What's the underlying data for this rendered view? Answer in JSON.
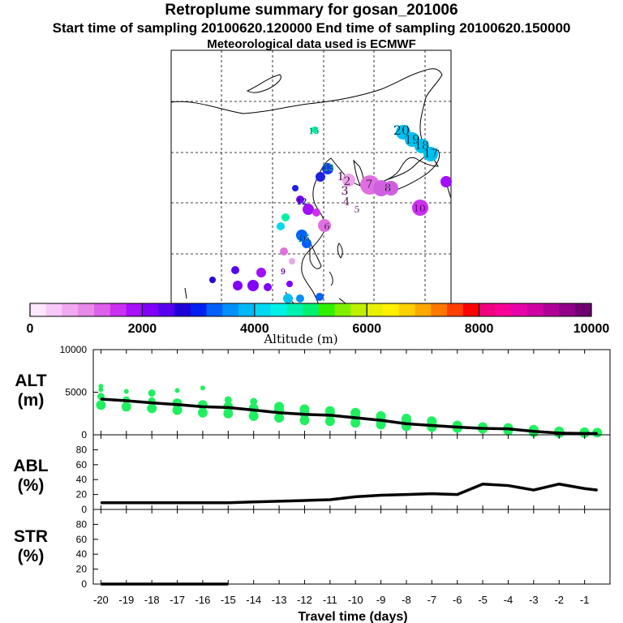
{
  "header": {
    "title": "Retroplume summary for gosan_201006",
    "line2": "Start time of sampling 20100620.120000     End time of sampling 20100620.150000",
    "line3": "Meteorological data used is ECMWF"
  },
  "colorbar": {
    "label": "Altitude (m)",
    "ticks": [
      "0",
      "2000",
      "4000",
      "6000",
      "8000",
      "10000"
    ],
    "min": 0,
    "max": 10000,
    "colors": [
      "#ffe8ff",
      "#f8c8f8",
      "#f0a8f0",
      "#e888e8",
      "#dc60e8",
      "#cc30f0",
      "#a810f8",
      "#8000f8",
      "#5800f0",
      "#2000d8",
      "#0020f0",
      "#0060f8",
      "#0090f8",
      "#00b8f8",
      "#00d8f0",
      "#00f0e8",
      "#00f0b0",
      "#00f070",
      "#30f000",
      "#80f000",
      "#c0f000",
      "#e8f000",
      "#fff000",
      "#ffd000",
      "#ffa800",
      "#ff7800",
      "#ff4000",
      "#ff0000",
      "#f00080",
      "#f80098",
      "#e800a8",
      "#d000a0",
      "#b00098",
      "#900088",
      "#700070"
    ]
  },
  "map": {
    "labels": [
      {
        "t": "20",
        "c": "#00c0f0"
      },
      {
        "t": "19",
        "c": "#00c0f0"
      },
      {
        "t": "18",
        "c": "#00c0f0"
      },
      {
        "t": "17",
        "c": "#00c0f0"
      },
      {
        "t": "1",
        "c": "#e070e0"
      },
      {
        "t": "2",
        "c": "#e070e0"
      },
      {
        "t": "3",
        "c": "#e070e0"
      },
      {
        "t": "4",
        "c": "#e8a8e8"
      },
      {
        "t": "5",
        "c": "#e8a8e8"
      },
      {
        "t": "6",
        "c": "#d060e0"
      },
      {
        "t": "7",
        "c": "#d060e0"
      },
      {
        "t": "8",
        "c": "#d060e0"
      },
      {
        "t": "10",
        "c": "#cc30f0"
      },
      {
        "t": "12",
        "c": "#2020e0"
      },
      {
        "t": "13",
        "c": "#00f0a0"
      },
      {
        "t": "15",
        "c": "#00f0a0"
      },
      {
        "t": "16",
        "c": "#00c0f0"
      },
      {
        "t": "9",
        "c": "#a010f8"
      }
    ]
  },
  "chart_data": [
    {
      "type": "line",
      "panel": "ALT",
      "ylabel": "ALT\n(m)",
      "ylim": [
        0,
        10000
      ],
      "yticks": [
        0,
        5000,
        10000
      ],
      "xlim": [
        -20.3,
        0
      ],
      "x": [
        -20,
        -19,
        -18,
        -17,
        -16,
        -15,
        -14,
        -13,
        -12,
        -11,
        -10,
        -9,
        -8,
        -7,
        -6,
        -5,
        -4,
        -3,
        -2,
        -1,
        -0.5
      ],
      "values": [
        4200,
        4000,
        3750,
        3550,
        3300,
        3200,
        2900,
        2600,
        2400,
        2300,
        2000,
        1700,
        1300,
        1100,
        900,
        750,
        700,
        400,
        200,
        150,
        150
      ],
      "scatter": [
        {
          "x": -20,
          "y": 3500
        },
        {
          "x": -20,
          "y": 4500
        },
        {
          "x": -20,
          "y": 5300
        },
        {
          "x": -20,
          "y": 5700
        },
        {
          "x": -19,
          "y": 3300
        },
        {
          "x": -19,
          "y": 4100
        },
        {
          "x": -19,
          "y": 5100
        },
        {
          "x": -18,
          "y": 3100
        },
        {
          "x": -18,
          "y": 4000
        },
        {
          "x": -18,
          "y": 4900
        },
        {
          "x": -17,
          "y": 2900
        },
        {
          "x": -17,
          "y": 3700
        },
        {
          "x": -17,
          "y": 5200
        },
        {
          "x": -16,
          "y": 2600
        },
        {
          "x": -16,
          "y": 3500
        },
        {
          "x": -16,
          "y": 5500
        },
        {
          "x": -15,
          "y": 2500
        },
        {
          "x": -15,
          "y": 3300
        },
        {
          "x": -15,
          "y": 4100
        },
        {
          "x": -14,
          "y": 2200
        },
        {
          "x": -14,
          "y": 3100
        },
        {
          "x": -14,
          "y": 3900
        },
        {
          "x": -13,
          "y": 2000
        },
        {
          "x": -13,
          "y": 2900
        },
        {
          "x": -13,
          "y": 3300
        },
        {
          "x": -12,
          "y": 1700
        },
        {
          "x": -12,
          "y": 2500
        },
        {
          "x": -12,
          "y": 3000
        },
        {
          "x": -11,
          "y": 1600
        },
        {
          "x": -11,
          "y": 2400
        },
        {
          "x": -11,
          "y": 2800
        },
        {
          "x": -10,
          "y": 1400
        },
        {
          "x": -10,
          "y": 2100
        },
        {
          "x": -10,
          "y": 2600
        },
        {
          "x": -9,
          "y": 1200
        },
        {
          "x": -9,
          "y": 1700
        },
        {
          "x": -9,
          "y": 2200
        },
        {
          "x": -8,
          "y": 1000
        },
        {
          "x": -8,
          "y": 1500
        },
        {
          "x": -8,
          "y": 1900
        },
        {
          "x": -7,
          "y": 900
        },
        {
          "x": -7,
          "y": 1200
        },
        {
          "x": -7,
          "y": 1600
        },
        {
          "x": -6,
          "y": 800
        },
        {
          "x": -6,
          "y": 1100
        },
        {
          "x": -5,
          "y": 700
        },
        {
          "x": -5,
          "y": 900
        },
        {
          "x": -4,
          "y": 500
        },
        {
          "x": -4,
          "y": 800
        },
        {
          "x": -3,
          "y": 300
        },
        {
          "x": -3,
          "y": 600
        },
        {
          "x": -2,
          "y": 200
        },
        {
          "x": -2,
          "y": 400
        },
        {
          "x": -1,
          "y": 200
        },
        {
          "x": -1,
          "y": 300
        },
        {
          "x": -0.5,
          "y": 250
        }
      ]
    },
    {
      "type": "line",
      "panel": "ABL",
      "ylabel": "ABL\n(%)",
      "ylim": [
        0,
        100
      ],
      "yticks": [
        0,
        20,
        40,
        60,
        80
      ],
      "xlim": [
        -20.3,
        0
      ],
      "x": [
        -20,
        -19,
        -18,
        -17,
        -16,
        -15,
        -14,
        -13,
        -12,
        -11,
        -10,
        -9,
        -8,
        -7,
        -6,
        -5,
        -4,
        -3,
        -2,
        -1,
        -0.5
      ],
      "values": [
        9,
        9,
        9,
        9,
        9,
        9,
        10,
        11,
        12,
        13,
        17,
        19,
        20,
        21,
        20,
        34,
        32,
        26,
        34,
        28,
        26
      ]
    },
    {
      "type": "line",
      "panel": "STR",
      "ylabel": "STR\n(%)",
      "ylim": [
        0,
        100
      ],
      "yticks": [
        0,
        20,
        40,
        60,
        80
      ],
      "xlim": [
        -20.3,
        0
      ],
      "x": [
        -20,
        -19,
        -18,
        -17,
        -16,
        -15
      ],
      "values": [
        0,
        0,
        0,
        0,
        0,
        0
      ],
      "xlabel": "Travel time (days)",
      "xticks": [
        -20,
        -19,
        -18,
        -17,
        -16,
        -15,
        -14,
        -13,
        -12,
        -11,
        -10,
        -9,
        -8,
        -7,
        -6,
        -5,
        -4,
        -3,
        -2,
        -1
      ],
      "xtick_labels": [
        "-20",
        "-19",
        "-18",
        "-17",
        "-16",
        "-15",
        "-14",
        "-13",
        "-12",
        "-11",
        "-10",
        "-9",
        "-8",
        "-7",
        "-6",
        "-5",
        "-4",
        "-3",
        "-2",
        "-1"
      ]
    }
  ]
}
